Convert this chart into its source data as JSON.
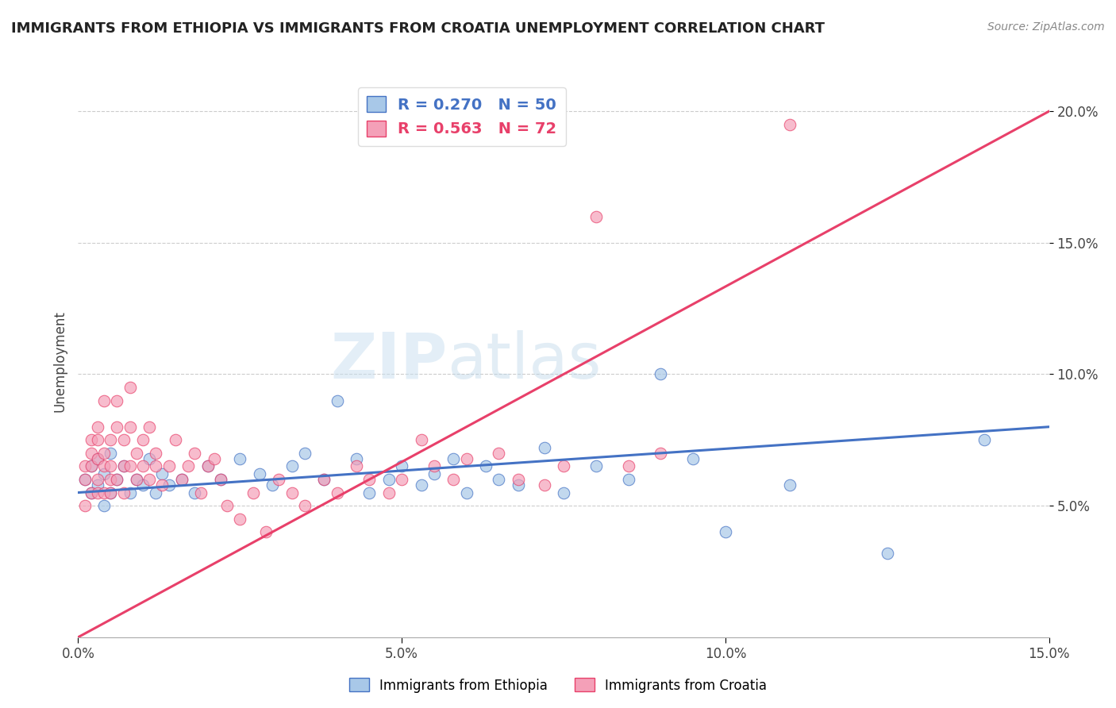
{
  "title": "IMMIGRANTS FROM ETHIOPIA VS IMMIGRANTS FROM CROATIA UNEMPLOYMENT CORRELATION CHART",
  "source_text": "Source: ZipAtlas.com",
  "ylabel": "Unemployment",
  "xlim": [
    0.0,
    0.15
  ],
  "ylim": [
    0.0,
    0.21
  ],
  "xtick_labels": [
    "0.0%",
    "5.0%",
    "10.0%",
    "15.0%"
  ],
  "xtick_vals": [
    0.0,
    0.05,
    0.1,
    0.15
  ],
  "ytick_labels": [
    "5.0%",
    "10.0%",
    "15.0%",
    "20.0%"
  ],
  "ytick_vals": [
    0.05,
    0.1,
    0.15,
    0.2
  ],
  "color_ethiopia": "#a8c8e8",
  "color_croatia": "#f4a0b8",
  "line_color_ethiopia": "#4472c4",
  "line_color_croatia": "#e8406a",
  "r_ethiopia": 0.27,
  "n_ethiopia": 50,
  "r_croatia": 0.563,
  "n_croatia": 72,
  "watermark_zip": "ZIP",
  "watermark_atlas": "atlas",
  "legend_label_ethiopia": "Immigrants from Ethiopia",
  "legend_label_croatia": "Immigrants from Croatia",
  "ethiopia_trend_x": [
    0.0,
    0.15
  ],
  "ethiopia_trend_y": [
    0.055,
    0.08
  ],
  "croatia_trend_x": [
    0.0,
    0.15
  ],
  "croatia_trend_y": [
    0.0,
    0.2
  ],
  "ethiopia_x": [
    0.001,
    0.002,
    0.002,
    0.003,
    0.003,
    0.004,
    0.004,
    0.005,
    0.005,
    0.006,
    0.007,
    0.008,
    0.009,
    0.01,
    0.011,
    0.012,
    0.013,
    0.014,
    0.016,
    0.018,
    0.02,
    0.022,
    0.025,
    0.028,
    0.03,
    0.033,
    0.035,
    0.038,
    0.04,
    0.043,
    0.045,
    0.048,
    0.05,
    0.053,
    0.055,
    0.058,
    0.06,
    0.063,
    0.065,
    0.068,
    0.072,
    0.075,
    0.08,
    0.085,
    0.09,
    0.095,
    0.1,
    0.11,
    0.125,
    0.14
  ],
  "ethiopia_y": [
    0.06,
    0.055,
    0.065,
    0.058,
    0.068,
    0.05,
    0.062,
    0.055,
    0.07,
    0.06,
    0.065,
    0.055,
    0.06,
    0.058,
    0.068,
    0.055,
    0.062,
    0.058,
    0.06,
    0.055,
    0.065,
    0.06,
    0.068,
    0.062,
    0.058,
    0.065,
    0.07,
    0.06,
    0.09,
    0.068,
    0.055,
    0.06,
    0.065,
    0.058,
    0.062,
    0.068,
    0.055,
    0.065,
    0.06,
    0.058,
    0.072,
    0.055,
    0.065,
    0.06,
    0.1,
    0.068,
    0.04,
    0.058,
    0.032,
    0.075
  ],
  "croatia_x": [
    0.001,
    0.001,
    0.001,
    0.002,
    0.002,
    0.002,
    0.002,
    0.003,
    0.003,
    0.003,
    0.003,
    0.003,
    0.004,
    0.004,
    0.004,
    0.004,
    0.005,
    0.005,
    0.005,
    0.005,
    0.006,
    0.006,
    0.006,
    0.007,
    0.007,
    0.007,
    0.008,
    0.008,
    0.008,
    0.009,
    0.009,
    0.01,
    0.01,
    0.011,
    0.011,
    0.012,
    0.012,
    0.013,
    0.014,
    0.015,
    0.016,
    0.017,
    0.018,
    0.019,
    0.02,
    0.021,
    0.022,
    0.023,
    0.025,
    0.027,
    0.029,
    0.031,
    0.033,
    0.035,
    0.038,
    0.04,
    0.043,
    0.045,
    0.048,
    0.05,
    0.053,
    0.055,
    0.058,
    0.06,
    0.065,
    0.068,
    0.072,
    0.075,
    0.08,
    0.085,
    0.09,
    0.11
  ],
  "croatia_y": [
    0.06,
    0.065,
    0.05,
    0.07,
    0.055,
    0.065,
    0.075,
    0.06,
    0.055,
    0.068,
    0.075,
    0.08,
    0.055,
    0.07,
    0.065,
    0.09,
    0.06,
    0.075,
    0.055,
    0.065,
    0.08,
    0.06,
    0.09,
    0.065,
    0.075,
    0.055,
    0.08,
    0.065,
    0.095,
    0.06,
    0.07,
    0.065,
    0.075,
    0.06,
    0.08,
    0.065,
    0.07,
    0.058,
    0.065,
    0.075,
    0.06,
    0.065,
    0.07,
    0.055,
    0.065,
    0.068,
    0.06,
    0.05,
    0.045,
    0.055,
    0.04,
    0.06,
    0.055,
    0.05,
    0.06,
    0.055,
    0.065,
    0.06,
    0.055,
    0.06,
    0.075,
    0.065,
    0.06,
    0.068,
    0.07,
    0.06,
    0.058,
    0.065,
    0.16,
    0.065,
    0.07,
    0.195
  ]
}
